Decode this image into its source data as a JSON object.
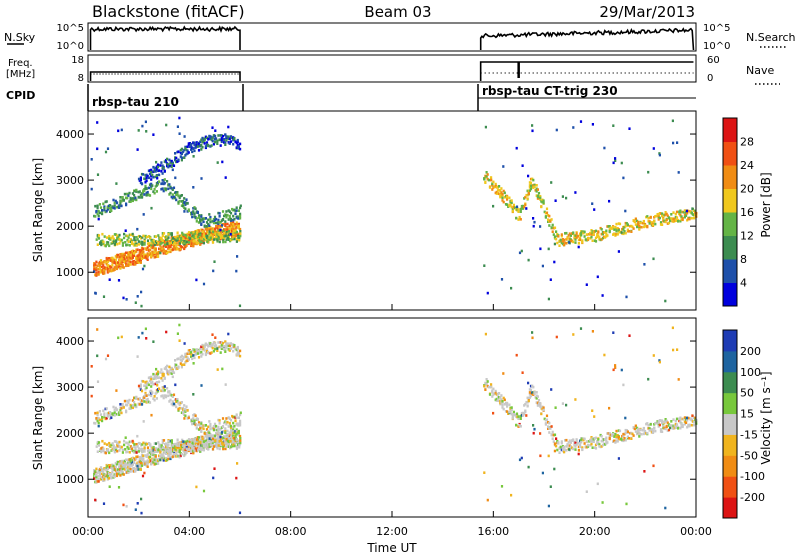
{
  "header": {
    "station": "Blackstone (fitACF)",
    "beam": "Beam 03",
    "date": "29/Mar/2013"
  },
  "panels": {
    "nsky_label": "N.Sky",
    "nsky_ticks": [
      "10^5",
      "10^0"
    ],
    "nsearch_label": "N.Search",
    "nsearch_ticks": [
      "10^5",
      "10^0"
    ],
    "freq_label_1": "Freq.",
    "freq_label_2": "[MHz]",
    "freq_ticks": [
      "18",
      "8"
    ],
    "nave_label": "Nave",
    "nave_ticks": [
      "60",
      "0"
    ],
    "cpid_label": "CPID",
    "cpid_1": "rbsp-tau 210",
    "cpid_2": "rbsp-tau CT-trig 230"
  },
  "colors": {
    "power_scale": [
      "#0000dd",
      "#1e50aa",
      "#3c8c50",
      "#64b446",
      "#f0c81e",
      "#f08c14",
      "#f05014",
      "#dc1414"
    ],
    "velocity_scale": [
      "#1e3cb4",
      "#1e64a0",
      "#3c8c50",
      "#78c83c",
      "#c8c8c8",
      "#f0b41e",
      "#f08c14",
      "#f05014",
      "#dc1414"
    ]
  },
  "chart_data": [
    {
      "type": "heatmap",
      "ylabel": "Slant Range [km]",
      "xlabel": "Time UT",
      "x_ticks": [
        "00:00",
        "04:00",
        "08:00",
        "12:00",
        "16:00",
        "20:00",
        "00:00"
      ],
      "y_ticks": [
        "1000",
        "2000",
        "3000",
        "4000"
      ],
      "xlim_hours": [
        0,
        24
      ],
      "ylim_km": [
        180,
        4500
      ],
      "colorbar_label": "Power [dB]",
      "colorbar_ticks": [
        "4",
        "8",
        "12",
        "16",
        "20",
        "24",
        "28"
      ],
      "coverage_hours": [
        [
          0.1,
          6.0
        ],
        [
          15.5,
          23.9
        ]
      ],
      "echo_bands": [
        {
          "t": [
            0.2,
            1.0,
            2.0,
            3.0,
            4.0,
            5.0,
            6.0
          ],
          "range_km": [
            1050,
            1200,
            1350,
            1550,
            1700,
            1850,
            1950
          ],
          "power_db": 22
        },
        {
          "t": [
            0.3,
            2.0,
            4.0,
            6.0
          ],
          "range_km": [
            1700,
            1700,
            1750,
            1800
          ],
          "power_db": 14
        },
        {
          "t": [
            0.2,
            1.5,
            3.0,
            4.5,
            6.0
          ],
          "range_km": [
            2300,
            2600,
            2900,
            2100,
            2300
          ],
          "power_db": 10
        },
        {
          "t": [
            2.0,
            3.0,
            4.0,
            5.0,
            6.0
          ],
          "range_km": [
            3000,
            3300,
            3700,
            3900,
            3800
          ],
          "power_db": 6
        },
        {
          "t": [
            15.6,
            16.3,
            17.0,
            17.5,
            18.5,
            20.0,
            22.0,
            24.0
          ],
          "range_km": [
            3100,
            2700,
            2200,
            3000,
            1700,
            1800,
            2100,
            2300
          ],
          "power_db": 18
        }
      ]
    },
    {
      "type": "heatmap",
      "ylabel": "Slant Range [km]",
      "xlabel": "Time UT",
      "x_ticks": [
        "00:00",
        "04:00",
        "08:00",
        "12:00",
        "16:00",
        "20:00",
        "00:00"
      ],
      "y_ticks": [
        "1000",
        "2000",
        "3000",
        "4000"
      ],
      "xlim_hours": [
        0,
        24
      ],
      "ylim_km": [
        180,
        4500
      ],
      "colorbar_label": "Velocity [m s⁻¹]",
      "colorbar_ticks": [
        "200",
        "100",
        "50",
        "15",
        "-15",
        "-50",
        "-100",
        "-200"
      ],
      "coverage_hours": [
        [
          0.1,
          6.0
        ],
        [
          15.5,
          23.9
        ]
      ]
    }
  ]
}
